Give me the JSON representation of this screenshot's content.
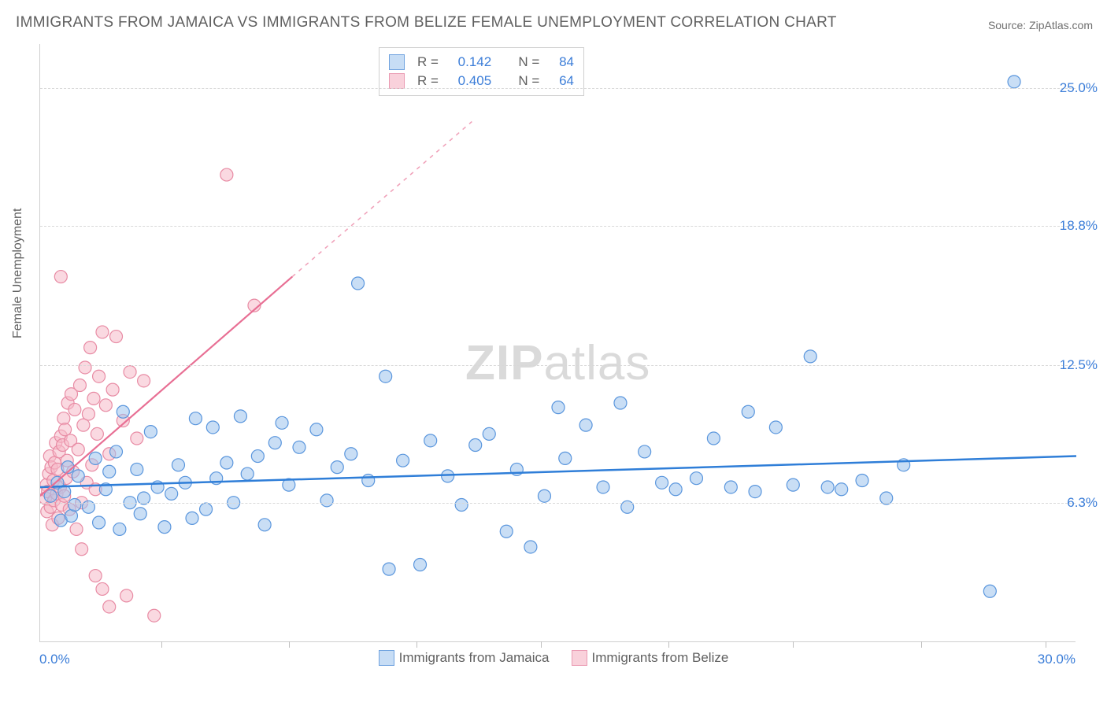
{
  "title": "IMMIGRANTS FROM JAMAICA VS IMMIGRANTS FROM BELIZE FEMALE UNEMPLOYMENT CORRELATION CHART",
  "source": "Source: ZipAtlas.com",
  "watermark_zip": "ZIP",
  "watermark_atlas": "atlas",
  "ylabel": "Female Unemployment",
  "chart": {
    "type": "scatter",
    "xlim": [
      0,
      30
    ],
    "ylim": [
      0,
      27
    ],
    "x_label_min": "0.0%",
    "x_label_max": "30.0%",
    "y_ticks": [
      {
        "v": 6.3,
        "label": "6.3%"
      },
      {
        "v": 12.5,
        "label": "12.5%"
      },
      {
        "v": 18.8,
        "label": "18.8%"
      },
      {
        "v": 25.0,
        "label": "25.0%"
      }
    ],
    "x_tick_positions": [
      3.5,
      7.2,
      10.9,
      14.5,
      18.2,
      21.8,
      25.5,
      29.1
    ],
    "grid_color": "#d8d8d8",
    "background_color": "#ffffff",
    "marker_radius": 8,
    "marker_opacity": 0.55,
    "series": [
      {
        "name": "Immigrants from Jamaica",
        "color_fill": "#9cc3ec",
        "color_stroke": "#5a96dd",
        "swatch_fill": "#c7ddf5",
        "swatch_stroke": "#6fa2df",
        "R": "0.142",
        "N": "84",
        "trend": {
          "x1": 0,
          "y1": 7.0,
          "x2": 30,
          "y2": 8.4,
          "dash_after_x": 30,
          "stroke": "#2f7ed8",
          "width": 2.5
        },
        "points": [
          [
            0.3,
            6.6
          ],
          [
            0.5,
            7.2
          ],
          [
            0.6,
            5.5
          ],
          [
            0.7,
            6.8
          ],
          [
            0.8,
            7.9
          ],
          [
            0.9,
            5.7
          ],
          [
            1.0,
            6.2
          ],
          [
            1.1,
            7.5
          ],
          [
            1.4,
            6.1
          ],
          [
            1.6,
            8.3
          ],
          [
            1.7,
            5.4
          ],
          [
            1.9,
            6.9
          ],
          [
            2.0,
            7.7
          ],
          [
            2.2,
            8.6
          ],
          [
            2.3,
            5.1
          ],
          [
            2.4,
            10.4
          ],
          [
            2.6,
            6.3
          ],
          [
            2.8,
            7.8
          ],
          [
            2.9,
            5.8
          ],
          [
            3.0,
            6.5
          ],
          [
            3.2,
            9.5
          ],
          [
            3.4,
            7.0
          ],
          [
            3.6,
            5.2
          ],
          [
            3.8,
            6.7
          ],
          [
            4.0,
            8.0
          ],
          [
            4.2,
            7.2
          ],
          [
            4.4,
            5.6
          ],
          [
            4.5,
            10.1
          ],
          [
            4.8,
            6.0
          ],
          [
            5.0,
            9.7
          ],
          [
            5.1,
            7.4
          ],
          [
            5.4,
            8.1
          ],
          [
            5.6,
            6.3
          ],
          [
            5.8,
            10.2
          ],
          [
            6.0,
            7.6
          ],
          [
            6.3,
            8.4
          ],
          [
            6.5,
            5.3
          ],
          [
            6.8,
            9.0
          ],
          [
            7.0,
            9.9
          ],
          [
            7.2,
            7.1
          ],
          [
            7.5,
            8.8
          ],
          [
            8.0,
            9.6
          ],
          [
            8.3,
            6.4
          ],
          [
            8.6,
            7.9
          ],
          [
            9.0,
            8.5
          ],
          [
            9.2,
            16.2
          ],
          [
            9.5,
            7.3
          ],
          [
            10.0,
            12.0
          ],
          [
            10.1,
            3.3
          ],
          [
            10.5,
            8.2
          ],
          [
            11.0,
            3.5
          ],
          [
            11.3,
            9.1
          ],
          [
            11.8,
            7.5
          ],
          [
            12.2,
            6.2
          ],
          [
            12.6,
            8.9
          ],
          [
            13.0,
            9.4
          ],
          [
            13.5,
            5.0
          ],
          [
            13.8,
            7.8
          ],
          [
            14.2,
            4.3
          ],
          [
            14.6,
            6.6
          ],
          [
            15.0,
            10.6
          ],
          [
            15.2,
            8.3
          ],
          [
            15.8,
            9.8
          ],
          [
            16.3,
            7.0
          ],
          [
            16.8,
            10.8
          ],
          [
            17.0,
            6.1
          ],
          [
            17.5,
            8.6
          ],
          [
            18.0,
            7.2
          ],
          [
            18.4,
            6.9
          ],
          [
            19.0,
            7.4
          ],
          [
            19.5,
            9.2
          ],
          [
            20.0,
            7.0
          ],
          [
            20.5,
            10.4
          ],
          [
            20.7,
            6.8
          ],
          [
            21.3,
            9.7
          ],
          [
            21.8,
            7.1
          ],
          [
            22.3,
            12.9
          ],
          [
            22.8,
            7.0
          ],
          [
            23.2,
            6.9
          ],
          [
            23.8,
            7.3
          ],
          [
            27.5,
            2.3
          ],
          [
            28.2,
            25.3
          ],
          [
            24.5,
            6.5
          ],
          [
            25.0,
            8.0
          ]
        ]
      },
      {
        "name": "Immigrants from Belize",
        "color_fill": "#f6b9c8",
        "color_stroke": "#e88ba4",
        "swatch_fill": "#f9d1db",
        "swatch_stroke": "#ea9ab2",
        "R": "0.405",
        "N": "64",
        "trend": {
          "x1": 0,
          "y1": 6.6,
          "x2": 7.3,
          "y2": 16.5,
          "dash_after_x": 7.3,
          "dash_x2": 12.5,
          "dash_y2": 23.5,
          "stroke": "#e86f94",
          "width": 2.2
        },
        "points": [
          [
            0.15,
            6.5
          ],
          [
            0.18,
            7.1
          ],
          [
            0.2,
            5.9
          ],
          [
            0.22,
            6.8
          ],
          [
            0.25,
            7.6
          ],
          [
            0.28,
            8.4
          ],
          [
            0.3,
            6.1
          ],
          [
            0.32,
            7.9
          ],
          [
            0.35,
            5.3
          ],
          [
            0.38,
            7.3
          ],
          [
            0.4,
            6.4
          ],
          [
            0.42,
            8.1
          ],
          [
            0.45,
            9.0
          ],
          [
            0.48,
            6.7
          ],
          [
            0.5,
            7.8
          ],
          [
            0.52,
            5.6
          ],
          [
            0.55,
            8.6
          ],
          [
            0.58,
            7.0
          ],
          [
            0.6,
            9.3
          ],
          [
            0.62,
            6.2
          ],
          [
            0.65,
            8.9
          ],
          [
            0.68,
            10.1
          ],
          [
            0.7,
            6.6
          ],
          [
            0.72,
            9.6
          ],
          [
            0.75,
            7.4
          ],
          [
            0.78,
            8.2
          ],
          [
            0.8,
            10.8
          ],
          [
            0.85,
            6.0
          ],
          [
            0.88,
            9.1
          ],
          [
            0.9,
            11.2
          ],
          [
            0.95,
            7.7
          ],
          [
            1.0,
            10.5
          ],
          [
            1.05,
            5.1
          ],
          [
            1.1,
            8.7
          ],
          [
            1.15,
            11.6
          ],
          [
            1.2,
            6.3
          ],
          [
            1.25,
            9.8
          ],
          [
            1.3,
            12.4
          ],
          [
            1.35,
            7.2
          ],
          [
            1.4,
            10.3
          ],
          [
            1.45,
            13.3
          ],
          [
            1.5,
            8.0
          ],
          [
            1.55,
            11.0
          ],
          [
            1.6,
            6.9
          ],
          [
            1.65,
            9.4
          ],
          [
            1.7,
            12.0
          ],
          [
            1.8,
            14.0
          ],
          [
            1.9,
            10.7
          ],
          [
            2.0,
            8.5
          ],
          [
            2.1,
            11.4
          ],
          [
            2.2,
            13.8
          ],
          [
            0.6,
            16.5
          ],
          [
            2.4,
            10.0
          ],
          [
            2.6,
            12.2
          ],
          [
            2.8,
            9.2
          ],
          [
            3.0,
            11.8
          ],
          [
            1.6,
            3.0
          ],
          [
            1.8,
            2.4
          ],
          [
            2.0,
            1.6
          ],
          [
            2.5,
            2.1
          ],
          [
            3.3,
            1.2
          ],
          [
            6.2,
            15.2
          ],
          [
            5.4,
            21.1
          ],
          [
            1.2,
            4.2
          ]
        ]
      }
    ]
  },
  "legend_labels": {
    "R": "R  =",
    "N": "N  ="
  }
}
